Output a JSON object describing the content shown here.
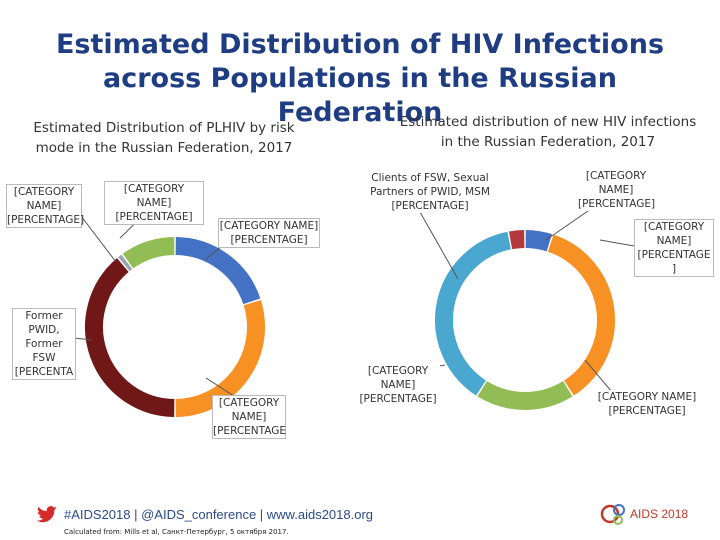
{
  "title": "Estimated Distribution of HIV Infections across Populations in the Russian Federation",
  "colors": {
    "blue": "#4472c4",
    "orange": "#f79124",
    "green": "#92bd55",
    "maroon": "#701818",
    "teal": "#4aa7cf",
    "red": "#b33a3a"
  },
  "chart_data": [
    {
      "type": "pie",
      "variant": "donut",
      "title": "Estimated Distribution of PLHIV by risk mode in the Russian Federation, 2017",
      "slices": [
        {
          "name": "segment-blue",
          "value": 20,
          "color": "#4472c4",
          "label": "[CATEGORY NAME] [PERCENTAGE]"
        },
        {
          "name": "segment-orange",
          "value": 30,
          "color": "#f79124",
          "label": "[CATEGORY NAME] [PERCENTAGE"
        },
        {
          "name": "segment-maroon",
          "value": 39,
          "color": "#701818",
          "label": "Former PWID, Former FSW [PERCENTA"
        },
        {
          "name": "segment-gray",
          "value": 1,
          "color": "#9aa5b1",
          "label": "[CATEGORY NAME] [PERCENTAGE]"
        },
        {
          "name": "segment-green",
          "value": 10,
          "color": "#92bd55",
          "label": "[CATEGORY NAME] [PERCENTAGE]"
        }
      ]
    },
    {
      "type": "pie",
      "variant": "donut",
      "title": "Estimated distribution of new HIV infections in the Russian Federation, 2017",
      "slices": [
        {
          "name": "segment-blue",
          "value": 5,
          "color": "#4472c4",
          "label": "[CATEGORY NAME] [PERCENTAGE ]"
        },
        {
          "name": "segment-orange",
          "value": 36,
          "color": "#f79124",
          "label": "[CATEGORY NAME] [PERCENTAGE]"
        },
        {
          "name": "segment-green",
          "value": 18,
          "color": "#92bd55",
          "label": "[CATEGORY NAME] [PERCENTAGE]"
        },
        {
          "name": "segment-teal",
          "value": 38,
          "color": "#4aa7cf",
          "label": "Clients of FSW, Sexual Partners of PWID, MSM [PERCENTAGE]"
        },
        {
          "name": "segment-red",
          "value": 3,
          "color": "#b33a3a",
          "label": "[CATEGORY NAME] [PERCENTAGE]"
        }
      ]
    }
  ],
  "footer": {
    "hashtag_line": "#AIDS2018 | @AIDS_conference | www.aids2018.org",
    "calc": "Calculated from: Mills et al, Санкт-Петербург, 5 октября 2017.",
    "logo": "AIDS 2018"
  }
}
